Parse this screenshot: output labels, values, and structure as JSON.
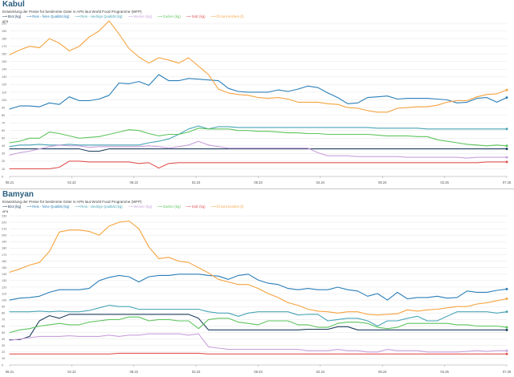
{
  "chart_data": [
    {
      "type": "line",
      "title": "Kabul",
      "subtitle": "Entwicklung der Preise für bestimmte Güter in AFN laut World Food Programme (WFP)",
      "ylabel": "AFN",
      "ylim": [
        0,
        200
      ],
      "ytick_step": 10,
      "grid": true,
      "legend_position": "top-left",
      "xtick_labels": [
        "08.21",
        "02.22",
        "08.22",
        "02.23",
        "08.23",
        "02.24",
        "08.24",
        "02.25",
        "07.25"
      ],
      "series": [
        {
          "name": "Brot (kg)",
          "color": "#1f3f5f",
          "values": [
            36,
            36,
            36,
            36,
            36,
            36,
            36,
            36,
            33,
            33,
            36,
            36,
            36,
            36,
            36,
            36,
            36,
            36,
            36,
            36,
            36,
            36,
            36,
            36,
            36,
            36,
            36,
            36,
            36,
            36,
            36,
            36,
            36,
            36,
            36,
            36,
            36,
            36,
            36,
            36,
            36,
            36,
            36,
            36,
            36,
            36,
            36,
            36,
            36,
            36,
            36
          ]
        },
        {
          "name": "Reis - feine Qualität (kg)",
          "color": "#2b7fb8",
          "values": [
            88,
            92,
            92,
            91,
            96,
            94,
            104,
            99,
            99,
            101,
            106,
            122,
            121,
            124,
            119,
            133,
            125,
            125,
            128,
            127,
            126,
            125,
            115,
            111,
            110,
            110,
            110,
            113,
            111,
            114,
            118,
            116,
            109,
            103,
            95,
            96,
            103,
            104,
            105,
            101,
            102,
            102,
            102,
            101,
            100,
            96,
            97,
            102,
            103,
            97,
            103
          ]
        },
        {
          "name": "Reis - niedrige Qualität (kg)",
          "color": "#49a5b6",
          "values": [
            39,
            41,
            41,
            42,
            41,
            41,
            42,
            41,
            41,
            41,
            41,
            41,
            41,
            41,
            44,
            46,
            49,
            55,
            62,
            66,
            62,
            65,
            65,
            64,
            64,
            64,
            64,
            64,
            64,
            64,
            64,
            64,
            64,
            64,
            64,
            64,
            64,
            63,
            63,
            63,
            63,
            63,
            62,
            62,
            62,
            62,
            62,
            62,
            62,
            62,
            62
          ]
        },
        {
          "name": "Weizen (kg)",
          "color": "#c9a0dc",
          "values": [
            28,
            31,
            33,
            36,
            39,
            41,
            40,
            40,
            38,
            39,
            39,
            39,
            39,
            39,
            40,
            39,
            37,
            39,
            41,
            46,
            41,
            39,
            37,
            37,
            37,
            37,
            37,
            37,
            37,
            37,
            37,
            31,
            27,
            27,
            27,
            26,
            26,
            26,
            26,
            26,
            25,
            25,
            25,
            25,
            25,
            25,
            24,
            25,
            25,
            25,
            25
          ]
        },
        {
          "name": "Zucker (kg)",
          "color": "#5fc45f",
          "values": [
            44,
            46,
            50,
            50,
            58,
            56,
            53,
            50,
            51,
            52,
            55,
            58,
            61,
            60,
            56,
            53,
            55,
            55,
            58,
            63,
            62,
            62,
            62,
            60,
            60,
            59,
            59,
            58,
            57,
            57,
            56,
            56,
            55,
            55,
            55,
            55,
            55,
            54,
            53,
            53,
            53,
            52,
            52,
            48,
            46,
            44,
            42,
            41,
            40,
            41,
            40
          ]
        },
        {
          "name": "Salz (kg)",
          "color": "#e15555",
          "values": [
            10,
            10,
            10,
            10,
            10,
            12,
            20,
            20,
            19,
            19,
            19,
            19,
            19,
            17,
            18,
            11,
            17,
            18,
            18,
            18,
            18,
            18,
            18,
            18,
            18,
            18,
            18,
            18,
            18,
            18,
            18,
            18,
            18,
            18,
            18,
            18,
            18,
            18,
            18,
            18,
            18,
            18,
            18,
            18,
            18,
            18,
            18,
            18,
            19,
            19,
            19
          ]
        },
        {
          "name": "Öl zum kochen (l)",
          "color": "#f5a340",
          "values": [
            159,
            165,
            170,
            168,
            180,
            174,
            164,
            170,
            182,
            190,
            203,
            186,
            167,
            156,
            148,
            155,
            152,
            148,
            155,
            144,
            133,
            114,
            109,
            107,
            106,
            103,
            102,
            103,
            101,
            97,
            97,
            97,
            95,
            94,
            90,
            89,
            86,
            84,
            84,
            89,
            90,
            91,
            91,
            93,
            97,
            99,
            99,
            104,
            107,
            108,
            113
          ]
        }
      ]
    },
    {
      "type": "line",
      "title": "Bamyan",
      "subtitle": "Entwicklung der Preise für bestimmte Güter in AFN laut World Food Programme (WFP)",
      "ylabel": "AFN",
      "ylim": [
        0,
        230
      ],
      "ytick_step": 10,
      "grid": true,
      "legend_position": "top-left",
      "xtick_labels": [
        "08.21",
        "02.22",
        "08.22",
        "02.23",
        "08.23",
        "02.24",
        "08.24",
        "02.25",
        "07.25"
      ],
      "series": [
        {
          "name": "Brot (kg)",
          "color": "#1f3f5f",
          "values": [
            39,
            39,
            44,
            68,
            76,
            72,
            78,
            78,
            78,
            78,
            78,
            78,
            78,
            78,
            78,
            78,
            78,
            78,
            78,
            72,
            54,
            54,
            54,
            54,
            54,
            54,
            54,
            54,
            54,
            54,
            55,
            55,
            55,
            59,
            59,
            54,
            54,
            54,
            54,
            54,
            54,
            54,
            54,
            54,
            54,
            54,
            54,
            54,
            54,
            54,
            54
          ]
        },
        {
          "name": "Reis - feine Qualität (kg)",
          "color": "#2b7fb8",
          "values": [
            100,
            103,
            104,
            106,
            112,
            116,
            116,
            116,
            118,
            130,
            135,
            138,
            136,
            128,
            136,
            138,
            138,
            140,
            140,
            140,
            138,
            137,
            132,
            138,
            140,
            131,
            126,
            124,
            118,
            116,
            118,
            116,
            116,
            120,
            116,
            114,
            106,
            110,
            100,
            112,
            102,
            104,
            104,
            106,
            103,
            104,
            114,
            112,
            112,
            115,
            117
          ]
        },
        {
          "name": "Reis - niedrige Qualität (kg)",
          "color": "#49a5b6",
          "values": [
            82,
            82,
            82,
            83,
            82,
            83,
            82,
            82,
            84,
            88,
            92,
            90,
            90,
            86,
            86,
            86,
            86,
            86,
            86,
            86,
            82,
            80,
            80,
            75,
            80,
            82,
            82,
            82,
            82,
            77,
            78,
            78,
            68,
            70,
            72,
            72,
            68,
            60,
            68,
            68,
            72,
            75,
            68,
            68,
            75,
            82,
            82,
            82,
            82,
            80,
            82
          ]
        },
        {
          "name": "Weizen (kg)",
          "color": "#c9a0dc",
          "values": [
            38,
            40,
            42,
            44,
            44,
            44,
            45,
            44,
            44,
            44,
            46,
            44,
            46,
            46,
            48,
            48,
            48,
            48,
            46,
            48,
            28,
            26,
            24,
            24,
            24,
            24,
            24,
            24,
            24,
            24,
            22,
            22,
            22,
            24,
            22,
            22,
            20,
            20,
            24,
            22,
            22,
            22,
            20,
            20,
            20,
            20,
            21,
            22,
            21,
            22,
            22
          ]
        },
        {
          "name": "Zucker (kg)",
          "color": "#5fc45f",
          "values": [
            50,
            54,
            56,
            60,
            62,
            64,
            62,
            62,
            66,
            68,
            70,
            70,
            74,
            74,
            68,
            70,
            70,
            68,
            68,
            56,
            70,
            72,
            72,
            66,
            64,
            62,
            68,
            68,
            68,
            62,
            62,
            58,
            58,
            64,
            66,
            66,
            64,
            58,
            56,
            58,
            64,
            64,
            64,
            64,
            64,
            62,
            62,
            60,
            60,
            60,
            58
          ]
        },
        {
          "name": "Salz (kg)",
          "color": "#e15555",
          "values": [
            17,
            17,
            17,
            17,
            17,
            17,
            17,
            17,
            17,
            17,
            17,
            18,
            18,
            18,
            18,
            18,
            18,
            18,
            18,
            18,
            17,
            17,
            17,
            17,
            17,
            17,
            17,
            17,
            17,
            17,
            17,
            17,
            17,
            17,
            17,
            17,
            17,
            17,
            17,
            17,
            17,
            17,
            17,
            17,
            17,
            17,
            17,
            17,
            17,
            17,
            17
          ]
        },
        {
          "name": "Öl zum kochen (l)",
          "color": "#f5a340",
          "values": [
            143,
            148,
            154,
            158,
            175,
            205,
            208,
            208,
            206,
            200,
            214,
            220,
            222,
            210,
            182,
            164,
            166,
            160,
            158,
            150,
            142,
            132,
            128,
            124,
            124,
            118,
            110,
            104,
            96,
            92,
            86,
            83,
            82,
            80,
            82,
            82,
            78,
            77,
            78,
            79,
            85,
            83,
            85,
            86,
            88,
            90,
            90,
            94,
            96,
            99,
            102
          ]
        }
      ]
    }
  ]
}
